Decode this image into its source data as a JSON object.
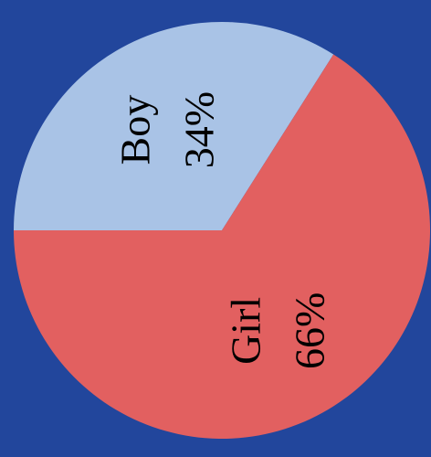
{
  "chart_data": {
    "type": "pie",
    "title": "",
    "start_direction": "left",
    "sweep": "clockwise",
    "slices": [
      {
        "name": "Boy",
        "value": 34,
        "label": "34%",
        "color": "#a9c3e6"
      },
      {
        "name": "Girl",
        "value": 66,
        "label": "66%",
        "color": "#e26060"
      }
    ],
    "background": "#22469c",
    "label_orientation": "rotated-90-ccw"
  }
}
